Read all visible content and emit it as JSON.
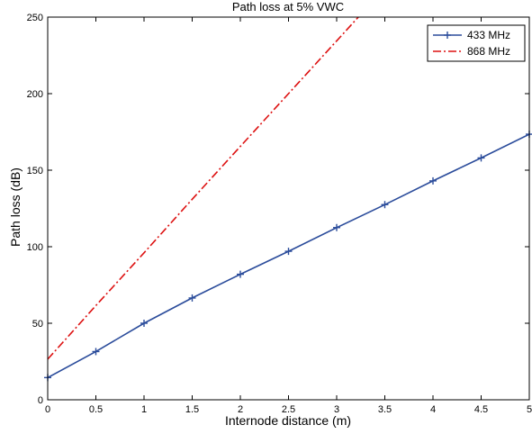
{
  "chart_data": {
    "type": "line",
    "title": "Path loss at 5% VWC",
    "xlabel": "Internode distance (m)",
    "ylabel": "Path loss (dB)",
    "xlim": [
      0,
      5
    ],
    "ylim": [
      0,
      250
    ],
    "xticks": [
      0,
      0.5,
      1,
      1.5,
      2,
      2.5,
      3,
      3.5,
      4,
      4.5,
      5
    ],
    "yticks": [
      0,
      50,
      100,
      150,
      200,
      250
    ],
    "grid": false,
    "legend_position": "top-right",
    "series": [
      {
        "name": "433 MHz",
        "color": "#2b4c9b",
        "line_style": "solid",
        "marker": "plus",
        "x": [
          0,
          0.5,
          1,
          1.5,
          2,
          2.5,
          3,
          3.5,
          4,
          4.5,
          5
        ],
        "y": [
          14.5,
          31.5,
          50,
          66.5,
          82,
          97,
          112.5,
          127.5,
          143,
          158,
          173.5
        ]
      },
      {
        "name": "868 MHz",
        "color": "#dd1111",
        "line_style": "dash-dot",
        "marker": "none",
        "x": [
          0,
          0.5,
          1,
          1.5,
          2,
          2.5,
          3,
          3.5
        ],
        "y": [
          26.5,
          61.5,
          96,
          131,
          165.5,
          200,
          234.5,
          269
        ]
      }
    ]
  }
}
